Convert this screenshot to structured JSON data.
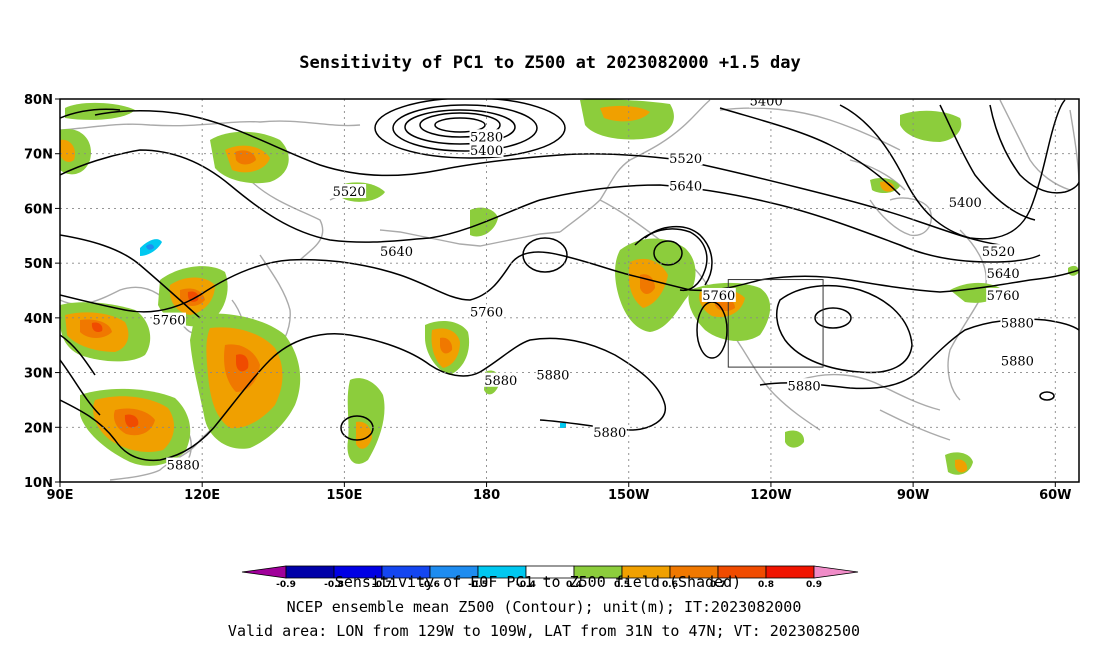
{
  "title": "Sensitivity of PC1 to Z500 at 2023082000 +1.5 day",
  "map": {
    "lon_range": [
      90,
      305
    ],
    "lat_range": [
      10,
      80
    ],
    "lat_ticks": [
      {
        "lat": 80,
        "label": "80N"
      },
      {
        "lat": 70,
        "label": "70N"
      },
      {
        "lat": 60,
        "label": "60N"
      },
      {
        "lat": 50,
        "label": "50N"
      },
      {
        "lat": 40,
        "label": "40N"
      },
      {
        "lat": 30,
        "label": "30N"
      },
      {
        "lat": 20,
        "label": "20N"
      },
      {
        "lat": 10,
        "label": "10N"
      }
    ],
    "lon_ticks": [
      {
        "lon": 90,
        "label": "90E"
      },
      {
        "lon": 120,
        "label": "120E"
      },
      {
        "lon": 150,
        "label": "150E"
      },
      {
        "lon": 180,
        "label": "180"
      },
      {
        "lon": 210,
        "label": "150W"
      },
      {
        "lon": 240,
        "label": "120W"
      },
      {
        "lon": 270,
        "label": "90W"
      },
      {
        "lon": 300,
        "label": "60W"
      }
    ],
    "valid_box": {
      "lon_min": 231,
      "lon_max": 251,
      "lat_min": 31,
      "lat_max": 47
    },
    "contour_labels": [
      {
        "text": "5400",
        "lon": 239,
        "lat": 79.5
      },
      {
        "text": "5280",
        "lon": 180,
        "lat": 73
      },
      {
        "text": "5400",
        "lon": 180,
        "lat": 70.5
      },
      {
        "text": "5520",
        "lon": 222,
        "lat": 69
      },
      {
        "text": "5520",
        "lon": 151,
        "lat": 63
      },
      {
        "text": "5640",
        "lon": 222,
        "lat": 64
      },
      {
        "text": "5400",
        "lon": 281,
        "lat": 61
      },
      {
        "text": "5640",
        "lon": 161,
        "lat": 52
      },
      {
        "text": "5520",
        "lon": 288,
        "lat": 52
      },
      {
        "text": "5640",
        "lon": 289,
        "lat": 48
      },
      {
        "text": "5760",
        "lon": 289,
        "lat": 44
      },
      {
        "text": "5760",
        "lon": 229,
        "lat": 44
      },
      {
        "text": "5760",
        "lon": 180,
        "lat": 41
      },
      {
        "text": "5880",
        "lon": 292,
        "lat": 39
      },
      {
        "text": "5760",
        "lon": 113,
        "lat": 39.5
      },
      {
        "text": "5880",
        "lon": 292,
        "lat": 32
      },
      {
        "text": "5880",
        "lon": 183,
        "lat": 28.5
      },
      {
        "text": "5880",
        "lon": 194,
        "lat": 29.5
      },
      {
        "text": "5880",
        "lon": 247,
        "lat": 27.5
      },
      {
        "text": "5880",
        "lon": 206,
        "lat": 19
      },
      {
        "text": "5880",
        "lon": 116,
        "lat": 13
      }
    ]
  },
  "colorbar": {
    "colors": [
      "#a0009a",
      "#0000a8",
      "#0000e4",
      "#1446f0",
      "#1e8cf0",
      "#00c8f0",
      "#ffffff",
      "#8ccd3c",
      "#f0a000",
      "#f07800",
      "#f04b00",
      "#f01400",
      "#f08cc8"
    ],
    "labels": [
      "-0.9",
      "-0.8",
      "-0.7",
      "-0.6",
      "-0.5",
      "-0.4",
      "0.4",
      "0.5",
      "0.6",
      "0.7",
      "0.8",
      "0.9"
    ]
  },
  "captions": [
    "Sensitivity of EOF PC1 to Z500 field (Shaded)",
    "NCEP ensemble mean Z500 (Contour); unit(m); IT:2023082000",
    "Valid area: LON from 129W to 109W, LAT from 31N to 47N; VT: 2023082500"
  ]
}
